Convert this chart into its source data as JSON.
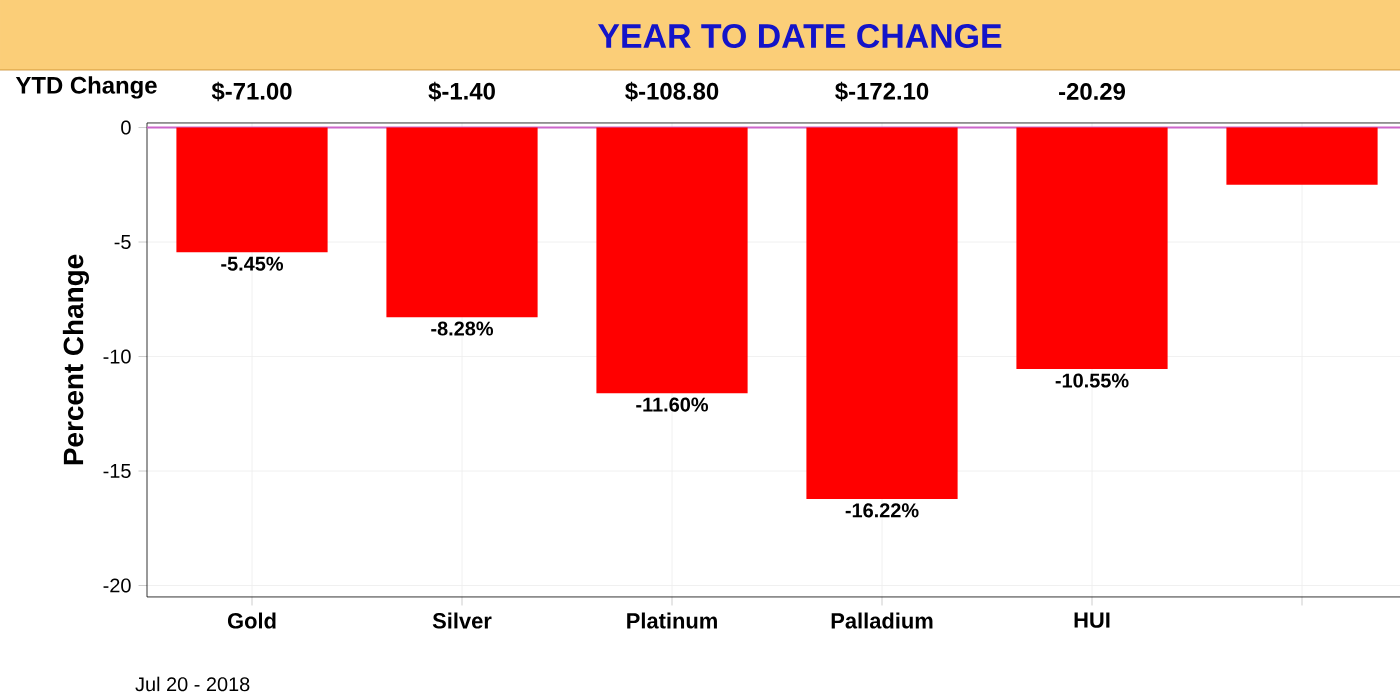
{
  "chart_data": {
    "type": "bar",
    "title": "YEAR TO DATE CHANGE",
    "ylabel": "Percent Change",
    "categories": [
      "Gold",
      "Silver",
      "Platinum",
      "Palladium",
      "HUI",
      null
    ],
    "values": [
      -5.45,
      -8.28,
      -11.6,
      -16.22,
      -10.55,
      -2.5
    ],
    "value_labels": [
      "-5.45%",
      "-8.28%",
      "-11.60%",
      "-16.22%",
      "-10.55%",
      null
    ],
    "color": "#ff0000",
    "ylim": [
      -20.5,
      0.2
    ],
    "yticks": [
      -20,
      -15,
      -10,
      -5,
      0
    ],
    "grid": true,
    "ref_lines": [
      {
        "axis": "y",
        "value": 0,
        "color": "#cc66cc"
      }
    ],
    "annotations": [
      "YTD Change",
      "$-71.00",
      "$-1.40",
      "$-108.80",
      "$-172.10",
      "-20.29",
      "Jul 20 - 2018"
    ]
  }
}
